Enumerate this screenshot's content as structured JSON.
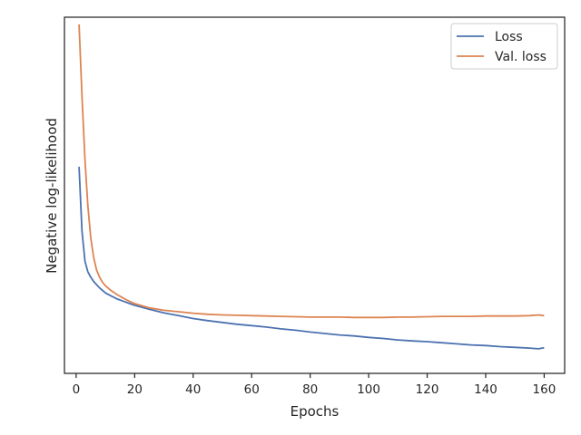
{
  "chart_data": {
    "type": "line",
    "xlabel": "Epochs",
    "ylabel": "Negative log-likelihood",
    "xlim": [
      -4,
      167
    ],
    "ylim": [
      0,
      100
    ],
    "x_ticks": [
      0,
      20,
      40,
      60,
      80,
      100,
      120,
      140,
      160
    ],
    "y_ticks_labeled": false,
    "grid": false,
    "legend_position": "top-right",
    "series": [
      {
        "name": "Loss",
        "color": "#4c72b0",
        "x": [
          1,
          2,
          3,
          4,
          5,
          6,
          8,
          10,
          12,
          14,
          16,
          18,
          20,
          25,
          30,
          35,
          40,
          45,
          50,
          55,
          60,
          65,
          70,
          75,
          80,
          85,
          90,
          95,
          100,
          105,
          110,
          115,
          120,
          125,
          130,
          135,
          140,
          145,
          150,
          155,
          158,
          160
        ],
        "values": [
          58.0,
          40.0,
          31.5,
          28.5,
          27.0,
          25.8,
          24.0,
          22.6,
          21.7,
          20.9,
          20.3,
          19.7,
          19.1,
          18.0,
          17.0,
          16.2,
          15.4,
          14.8,
          14.3,
          13.8,
          13.4,
          13.0,
          12.5,
          12.1,
          11.6,
          11.2,
          10.8,
          10.5,
          10.1,
          9.8,
          9.4,
          9.1,
          8.9,
          8.6,
          8.3,
          8.0,
          7.8,
          7.5,
          7.3,
          7.1,
          6.9,
          7.2
        ]
      },
      {
        "name": "Val. loss",
        "color": "#dd8452",
        "x": [
          1,
          2,
          3,
          4,
          5,
          6,
          7,
          8,
          9,
          10,
          12,
          14,
          16,
          18,
          20,
          25,
          30,
          35,
          40,
          45,
          50,
          55,
          60,
          65,
          70,
          75,
          80,
          85,
          90,
          95,
          100,
          105,
          110,
          115,
          120,
          125,
          130,
          135,
          140,
          145,
          150,
          155,
          158,
          160
        ],
        "values": [
          98.0,
          78.0,
          60.0,
          47.0,
          38.0,
          32.5,
          29.0,
          27.0,
          25.6,
          24.6,
          23.2,
          22.1,
          21.2,
          20.3,
          19.6,
          18.4,
          17.7,
          17.3,
          16.9,
          16.6,
          16.4,
          16.3,
          16.2,
          16.1,
          16.0,
          15.9,
          15.8,
          15.8,
          15.8,
          15.7,
          15.7,
          15.7,
          15.8,
          15.8,
          15.9,
          16.0,
          16.0,
          16.0,
          16.1,
          16.1,
          16.1,
          16.2,
          16.4,
          16.2
        ]
      }
    ]
  }
}
